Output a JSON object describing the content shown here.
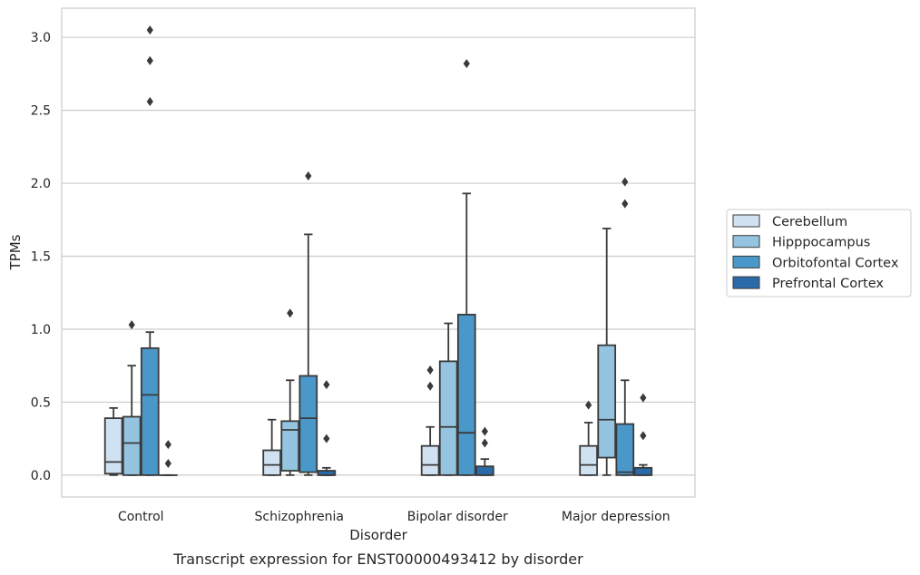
{
  "chart_data": {
    "type": "box",
    "title": "",
    "caption": "Transcript expression for ENST00000493412 by disorder",
    "xlabel": "Disorder",
    "ylabel": "TPMs",
    "ylim": [
      -0.15,
      3.2
    ],
    "yticks": [
      0.0,
      0.5,
      1.0,
      1.5,
      2.0,
      2.5,
      3.0
    ],
    "ytick_labels": [
      "0.0",
      "0.5",
      "1.0",
      "1.5",
      "2.0",
      "2.5",
      "3.0"
    ],
    "grid": "y",
    "legend_position": "right",
    "categories": [
      "Control",
      "Schizophrenia",
      "Bipolar disorder",
      "Major depression"
    ],
    "series": [
      {
        "name": "Cerebellum",
        "color": "#d0e1f2",
        "boxes": [
          {
            "whislo": 0.0,
            "q1": 0.01,
            "med": 0.09,
            "q3": 0.39,
            "whishi": 0.46,
            "fliers": []
          },
          {
            "whislo": 0.0,
            "q1": 0.0,
            "med": 0.07,
            "q3": 0.17,
            "whishi": 0.38,
            "fliers": []
          },
          {
            "whislo": 0.0,
            "q1": 0.0,
            "med": 0.07,
            "q3": 0.2,
            "whishi": 0.33,
            "fliers": [
              0.61,
              0.72
            ]
          },
          {
            "whislo": 0.0,
            "q1": 0.0,
            "med": 0.07,
            "q3": 0.2,
            "whishi": 0.36,
            "fliers": [
              0.48
            ]
          }
        ]
      },
      {
        "name": "Hipppocampus",
        "color": "#94c4df",
        "boxes": [
          {
            "whislo": 0.0,
            "q1": 0.0,
            "med": 0.22,
            "q3": 0.4,
            "whishi": 0.75,
            "fliers": [
              1.03
            ]
          },
          {
            "whislo": 0.0,
            "q1": 0.03,
            "med": 0.31,
            "q3": 0.37,
            "whishi": 0.65,
            "fliers": [
              1.11
            ]
          },
          {
            "whislo": 0.0,
            "q1": 0.0,
            "med": 0.33,
            "q3": 0.78,
            "whishi": 1.04,
            "fliers": []
          },
          {
            "whislo": 0.0,
            "q1": 0.12,
            "med": 0.38,
            "q3": 0.89,
            "whishi": 1.69,
            "fliers": []
          }
        ]
      },
      {
        "name": "Orbitofontal Cortex",
        "color": "#4a98c9",
        "boxes": [
          {
            "whislo": 0.0,
            "q1": 0.0,
            "med": 0.55,
            "q3": 0.87,
            "whishi": 0.98,
            "fliers": [
              2.56,
              2.84,
              3.05
            ]
          },
          {
            "whislo": 0.0,
            "q1": 0.02,
            "med": 0.39,
            "q3": 0.68,
            "whishi": 1.65,
            "fliers": [
              2.05
            ]
          },
          {
            "whislo": 0.0,
            "q1": 0.0,
            "med": 0.29,
            "q3": 1.1,
            "whishi": 1.93,
            "fliers": [
              2.82
            ]
          },
          {
            "whislo": 0.0,
            "q1": 0.0,
            "med": 0.02,
            "q3": 0.35,
            "whishi": 0.65,
            "fliers": [
              1.86,
              2.01
            ]
          }
        ]
      },
      {
        "name": "Prefrontal Cortex",
        "color": "#2a6aa9",
        "boxes": [
          {
            "whislo": 0.0,
            "q1": 0.0,
            "med": 0.0,
            "q3": 0.0,
            "whishi": 0.0,
            "fliers": [
              0.08,
              0.21
            ]
          },
          {
            "whislo": 0.0,
            "q1": 0.0,
            "med": 0.0,
            "q3": 0.03,
            "whishi": 0.05,
            "fliers": [
              0.25,
              0.62
            ]
          },
          {
            "whislo": 0.0,
            "q1": 0.0,
            "med": 0.0,
            "q3": 0.06,
            "whishi": 0.11,
            "fliers": [
              0.22,
              0.3
            ]
          },
          {
            "whislo": 0.0,
            "q1": 0.0,
            "med": 0.0,
            "q3": 0.05,
            "whishi": 0.07,
            "fliers": [
              0.27,
              0.53
            ]
          }
        ]
      }
    ]
  }
}
